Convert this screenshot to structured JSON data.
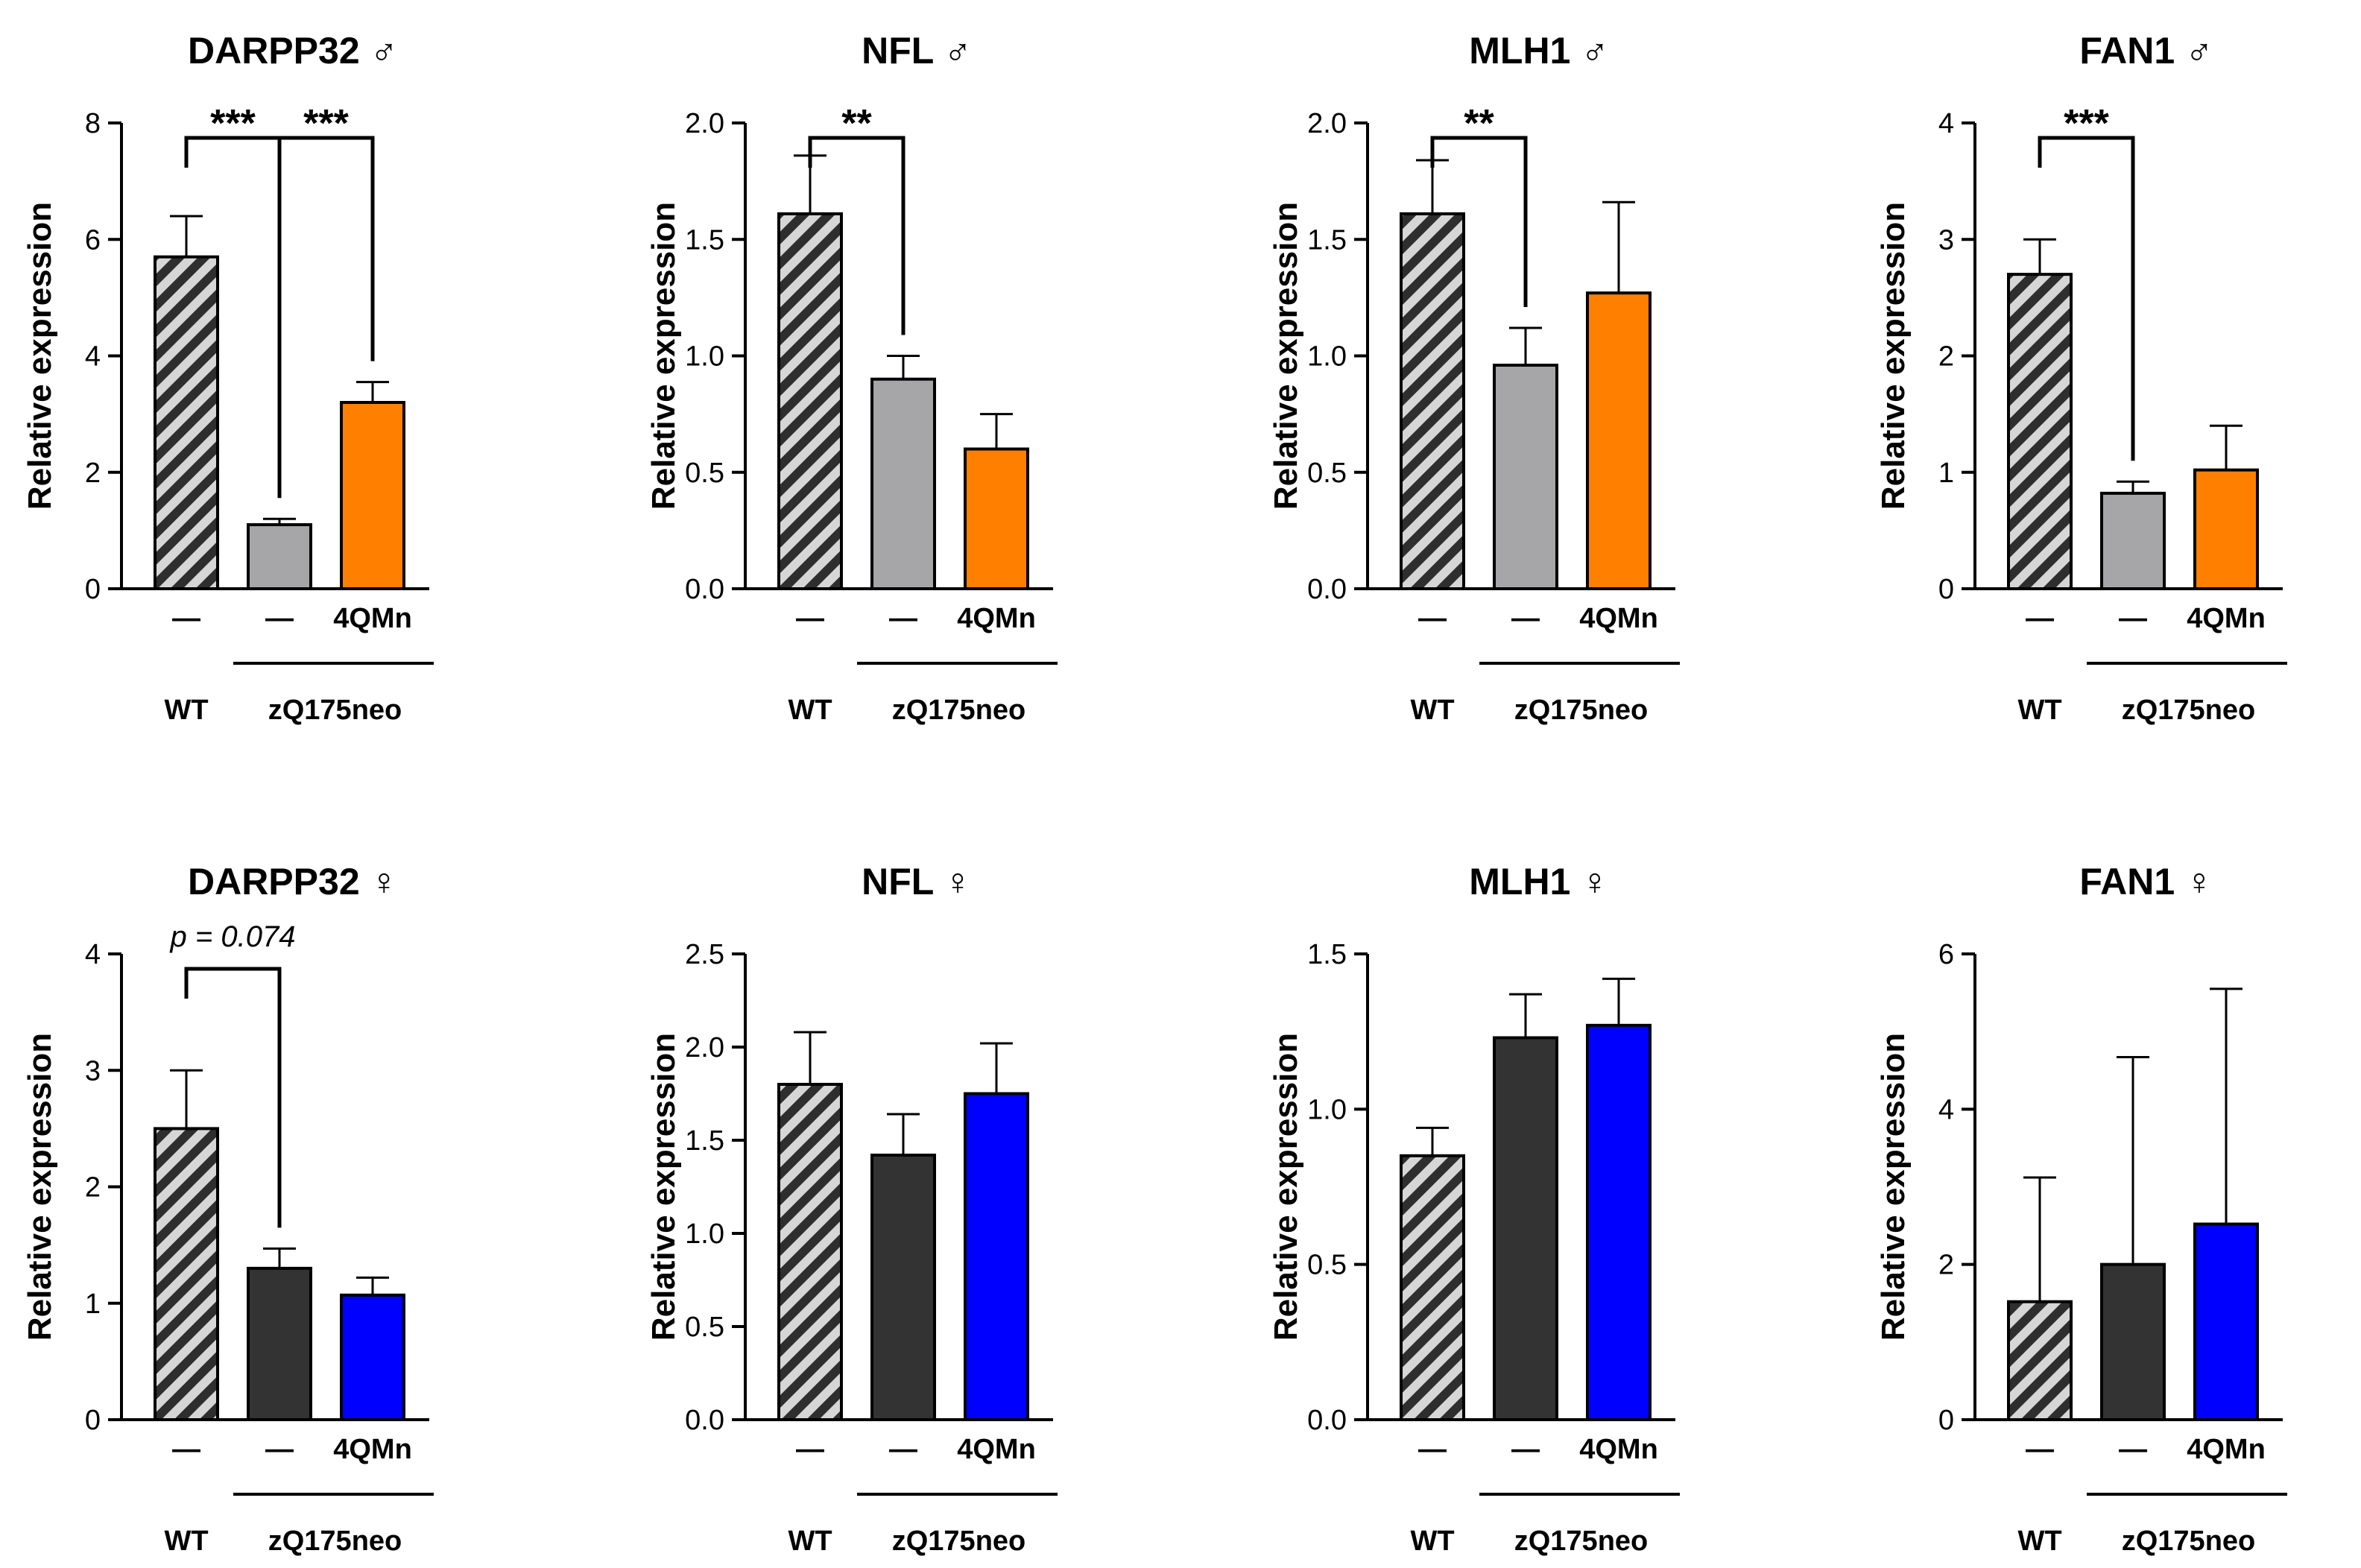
{
  "figure_ylabel": "Relative expression",
  "chart_data": [
    {
      "type": "bar",
      "title": "DARPP32 ♂",
      "ylabel": "Relative expression",
      "ylim": [
        0,
        8
      ],
      "yticks": [
        "0",
        "2",
        "4",
        "6",
        "8"
      ],
      "categories": [
        "—",
        "—",
        "4QMn"
      ],
      "values": [
        5.7,
        1.1,
        3.2
      ],
      "errors": [
        0.7,
        0.1,
        0.35
      ],
      "colors": [
        "hatch",
        "#a6a6a8",
        "#ff8000"
      ],
      "group_labels": [
        "WT",
        "zQ175neo"
      ],
      "annotations": [
        {
          "from": 0,
          "to": 1,
          "label": "***"
        },
        {
          "from": 1,
          "to": 2,
          "label": "***"
        }
      ]
    },
    {
      "type": "bar",
      "title": "NFL ♂",
      "ylabel": "Relative expression",
      "ylim": [
        0,
        2.0
      ],
      "yticks": [
        "0.0",
        "0.5",
        "1.0",
        "1.5",
        "2.0"
      ],
      "categories": [
        "—",
        "—",
        "4QMn"
      ],
      "values": [
        1.61,
        0.9,
        0.6
      ],
      "errors": [
        0.25,
        0.1,
        0.15
      ],
      "colors": [
        "hatch",
        "#a6a6a8",
        "#ff8000"
      ],
      "group_labels": [
        "WT",
        "zQ175neo"
      ],
      "annotations": [
        {
          "from": 0,
          "to": 1,
          "label": "**"
        }
      ]
    },
    {
      "type": "bar",
      "title": "MLH1 ♂",
      "ylabel": "Relative expression",
      "ylim": [
        0,
        2.0
      ],
      "yticks": [
        "0.0",
        "0.5",
        "1.0",
        "1.5",
        "2.0"
      ],
      "categories": [
        "—",
        "—",
        "4QMn"
      ],
      "values": [
        1.61,
        0.96,
        1.27
      ],
      "errors": [
        0.23,
        0.16,
        0.39
      ],
      "colors": [
        "hatch",
        "#a6a6a8",
        "#ff8000"
      ],
      "group_labels": [
        "WT",
        "zQ175neo"
      ],
      "annotations": [
        {
          "from": 0,
          "to": 1,
          "label": "**"
        }
      ]
    },
    {
      "type": "bar",
      "title": "FAN1 ♂",
      "ylabel": "Relative expression",
      "ylim": [
        0,
        4
      ],
      "yticks": [
        "0",
        "1",
        "2",
        "3",
        "4"
      ],
      "categories": [
        "—",
        "—",
        "4QMn"
      ],
      "values": [
        2.7,
        0.82,
        1.02
      ],
      "errors": [
        0.3,
        0.1,
        0.38
      ],
      "colors": [
        "hatch",
        "#a6a6a8",
        "#ff8000"
      ],
      "group_labels": [
        "WT",
        "zQ175neo"
      ],
      "annotations": [
        {
          "from": 0,
          "to": 1,
          "label": "***"
        }
      ]
    },
    {
      "type": "bar",
      "title": "DARPP32 ♀",
      "ylabel": "Relative expression",
      "ylim": [
        0,
        4
      ],
      "yticks": [
        "0",
        "1",
        "2",
        "3",
        "4"
      ],
      "categories": [
        "—",
        "—",
        "4QMn"
      ],
      "values": [
        2.5,
        1.3,
        1.07
      ],
      "errors": [
        0.5,
        0.17,
        0.15
      ],
      "colors": [
        "hatch",
        "#333333",
        "#0000ff"
      ],
      "group_labels": [
        "WT",
        "zQ175neo"
      ],
      "annotations": [
        {
          "from": 0,
          "to": 1,
          "label": "p = 0.074",
          "italic_prefix": "p"
        }
      ]
    },
    {
      "type": "bar",
      "title": "NFL ♀",
      "ylabel": "Relative expression",
      "ylim": [
        0,
        2.5
      ],
      "yticks": [
        "0.0",
        "0.5",
        "1.0",
        "1.5",
        "2.0",
        "2.5"
      ],
      "categories": [
        "—",
        "—",
        "4QMn"
      ],
      "values": [
        1.8,
        1.42,
        1.75
      ],
      "errors": [
        0.28,
        0.22,
        0.27
      ],
      "colors": [
        "hatch",
        "#333333",
        "#0000ff"
      ],
      "group_labels": [
        "WT",
        "zQ175neo"
      ],
      "annotations": []
    },
    {
      "type": "bar",
      "title": "MLH1 ♀",
      "ylabel": "Relative expression",
      "ylim": [
        0,
        1.5
      ],
      "yticks": [
        "0.0",
        "0.5",
        "1.0",
        "1.5"
      ],
      "categories": [
        "—",
        "—",
        "4QMn"
      ],
      "values": [
        0.85,
        1.23,
        1.27
      ],
      "errors": [
        0.09,
        0.14,
        0.15
      ],
      "colors": [
        "hatch",
        "#333333",
        "#0000ff"
      ],
      "group_labels": [
        "WT",
        "zQ175neo"
      ],
      "annotations": []
    },
    {
      "type": "bar",
      "title": "FAN1 ♀",
      "ylabel": "Relative expression",
      "ylim": [
        0,
        6
      ],
      "yticks": [
        "0",
        "2",
        "4",
        "6"
      ],
      "categories": [
        "—",
        "—",
        "4QMn"
      ],
      "values": [
        1.52,
        2.0,
        2.52
      ],
      "errors": [
        1.6,
        2.67,
        3.03
      ],
      "colors": [
        "hatch",
        "#333333",
        "#0000ff"
      ],
      "group_labels": [
        "WT",
        "zQ175neo"
      ],
      "annotations": []
    }
  ]
}
